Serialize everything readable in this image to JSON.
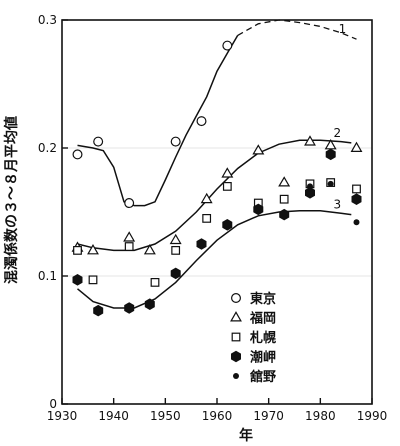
{
  "chart_data": {
    "type": "scatter",
    "xlabel": "年",
    "ylabel": "混濁係数の３～８月平均値",
    "xlim": [
      1930,
      1990
    ],
    "ylim": [
      0,
      0.3
    ],
    "xticks": [
      "1930",
      "1940",
      "1950",
      "1960",
      "1970",
      "1980",
      "1990"
    ],
    "yticks": [
      "0",
      "0.1",
      "0.2",
      "0.3"
    ],
    "legend_position": "bottom-right",
    "series": [
      {
        "name": "東京",
        "marker": "open-circle",
        "x": [
          1933,
          1937,
          1943,
          1952,
          1957,
          1962
        ],
        "y": [
          0.195,
          0.205,
          0.157,
          0.205,
          0.221,
          0.28
        ]
      },
      {
        "name": "福岡",
        "marker": "open-triangle",
        "x": [
          1933,
          1936,
          1943,
          1947,
          1952,
          1958,
          1962,
          1968,
          1973,
          1978,
          1982,
          1987
        ],
        "y": [
          0.122,
          0.12,
          0.13,
          0.12,
          0.128,
          0.16,
          0.18,
          0.198,
          0.173,
          0.205,
          0.202,
          0.2
        ]
      },
      {
        "name": "札幌",
        "marker": "open-square",
        "x": [
          1933,
          1936,
          1943,
          1948,
          1952,
          1958,
          1962,
          1968,
          1973,
          1978,
          1982,
          1987
        ],
        "y": [
          0.12,
          0.097,
          0.123,
          0.095,
          0.12,
          0.145,
          0.17,
          0.157,
          0.16,
          0.172,
          0.173,
          0.168
        ]
      },
      {
        "name": "潮岬",
        "marker": "filled-hexagon",
        "x": [
          1933,
          1937,
          1943,
          1947,
          1952,
          1957,
          1962,
          1968,
          1973,
          1978,
          1982,
          1987
        ],
        "y": [
          0.097,
          0.073,
          0.075,
          0.078,
          0.102,
          0.125,
          0.14,
          0.152,
          0.148,
          0.165,
          0.195,
          0.16
        ]
      },
      {
        "name": "舘野",
        "marker": "filled-circle",
        "x": [
          1978,
          1982,
          1987
        ],
        "y": [
          0.17,
          0.172,
          0.142
        ]
      }
    ],
    "curves": [
      {
        "label": "1",
        "solid_x": [
          1933,
          1936,
          1938,
          1940,
          1942,
          1944,
          1946,
          1948,
          1950,
          1952,
          1954,
          1956,
          1958,
          1960,
          1962,
          1964
        ],
        "solid_y": [
          0.202,
          0.2,
          0.198,
          0.185,
          0.158,
          0.155,
          0.155,
          0.158,
          0.175,
          0.193,
          0.21,
          0.225,
          0.24,
          0.26,
          0.274,
          0.288
        ],
        "dashed_x": [
          1964,
          1968,
          1972,
          1976,
          1980,
          1984,
          1987
        ],
        "dashed_y": [
          0.288,
          0.297,
          0.3,
          0.298,
          0.295,
          0.29,
          0.285
        ]
      },
      {
        "label": "2",
        "x": [
          1933,
          1936,
          1940,
          1944,
          1948,
          1952,
          1956,
          1960,
          1964,
          1968,
          1972,
          1976,
          1980,
          1984,
          1986
        ],
        "y": [
          0.125,
          0.122,
          0.12,
          0.12,
          0.125,
          0.135,
          0.15,
          0.168,
          0.184,
          0.196,
          0.203,
          0.206,
          0.206,
          0.205,
          0.204
        ]
      },
      {
        "label": "3",
        "x": [
          1933,
          1936,
          1940,
          1944,
          1948,
          1952,
          1956,
          1960,
          1964,
          1968,
          1972,
          1976,
          1980,
          1984,
          1986
        ],
        "y": [
          0.09,
          0.08,
          0.075,
          0.075,
          0.082,
          0.095,
          0.112,
          0.128,
          0.14,
          0.147,
          0.15,
          0.151,
          0.151,
          0.149,
          0.148
        ]
      }
    ]
  }
}
